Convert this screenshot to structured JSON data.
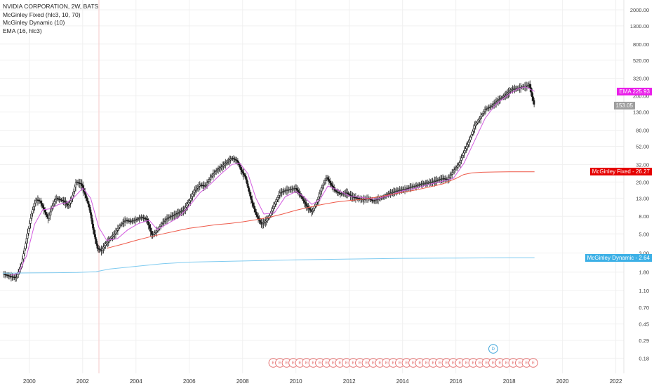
{
  "legend": {
    "title": "NVIDIA CORPORATION, 2W, BATS",
    "ind1": "McGinley Fixed (hlc3, 10, 70)",
    "ind2": "McGinley Dynamic (10)",
    "ind3": "EMA (16, hlc3)"
  },
  "tags": {
    "ema": {
      "label": "EMA",
      "value": "225.93",
      "color": "#e91ee9"
    },
    "last": {
      "value": "153.05",
      "color": "#9e9e9e"
    },
    "fixed": {
      "label": "McGinley Fixed",
      "value": "26.27",
      "color": "#e50000"
    },
    "dynamic": {
      "label": "McGinley Dynamic",
      "value": "2.64",
      "color": "#3cb0e6"
    }
  },
  "events": {
    "earnings_glyph": "E",
    "dividend_glyph": "D"
  },
  "colors": {
    "ema": "#d35be0",
    "fixed": "#ee5a4a",
    "dynamic": "#7fcbf0",
    "candle": "#1a1a1a",
    "grid": "#f0f0f0"
  },
  "chart_data": {
    "type": "line",
    "scale": "log",
    "ylim": [
      0.12,
      2600
    ],
    "xlim": [
      1998.9,
      2022.3
    ],
    "y_ticks": [
      "2000.00",
      "1300.00",
      "800.00",
      "520.00",
      "320.00",
      "200.00",
      "130.00",
      "80.00",
      "52.00",
      "32.00",
      "20.00",
      "13.00",
      "8.00",
      "5.00",
      "3.00",
      "1.80",
      "1.10",
      "0.70",
      "0.45",
      "0.29",
      "0.18"
    ],
    "x_ticks": [
      "2000",
      "2002",
      "2004",
      "2006",
      "2008",
      "2010",
      "2012",
      "2014",
      "2016",
      "2018",
      "2020",
      "2022"
    ],
    "grid": true,
    "price": {
      "name": "NVDA",
      "x": [
        1999.05,
        1999.3,
        1999.5,
        1999.7,
        1999.9,
        2000.1,
        2000.25,
        2000.4,
        2000.55,
        2000.7,
        2000.85,
        2001.0,
        2001.15,
        2001.3,
        2001.45,
        2001.6,
        2001.75,
        2001.95,
        2002.1,
        2002.25,
        2002.4,
        2002.55,
        2002.7,
        2002.85,
        2003.0,
        2003.2,
        2003.4,
        2003.6,
        2003.8,
        2004.0,
        2004.2,
        2004.4,
        2004.6,
        2004.8,
        2005.0,
        2005.2,
        2005.4,
        2005.6,
        2005.8,
        2006.0,
        2006.2,
        2006.4,
        2006.6,
        2006.8,
        2007.0,
        2007.2,
        2007.4,
        2007.6,
        2007.8,
        2007.95,
        2008.1,
        2008.3,
        2008.5,
        2008.7,
        2008.85,
        2009.0,
        2009.2,
        2009.4,
        2009.6,
        2009.8,
        2010.0,
        2010.2,
        2010.4,
        2010.6,
        2010.8,
        2011.0,
        2011.15,
        2011.3,
        2011.5,
        2011.7,
        2011.9,
        2012.1,
        2012.3,
        2012.5,
        2012.7,
        2012.9,
        2013.1,
        2013.3,
        2013.5,
        2013.7,
        2013.9,
        2014.1,
        2014.3,
        2014.5,
        2014.7,
        2014.9,
        2015.1,
        2015.3,
        2015.5,
        2015.7,
        2015.9,
        2016.1,
        2016.3,
        2016.5,
        2016.7,
        2016.9,
        2017.1,
        2017.3,
        2017.5,
        2017.7,
        2017.9,
        2018.1,
        2018.3,
        2018.5,
        2018.65,
        2018.75,
        2018.85,
        2018.95
      ],
      "y": [
        1.7,
        1.6,
        1.55,
        2.2,
        4.5,
        9.0,
        12.5,
        12.0,
        9.5,
        7.5,
        10.5,
        13.0,
        12.5,
        12.0,
        10.5,
        13.0,
        20.0,
        19.0,
        14.0,
        10.0,
        5.5,
        3.4,
        3.2,
        3.8,
        4.3,
        5.0,
        6.3,
        7.2,
        7.0,
        7.3,
        7.8,
        7.4,
        4.8,
        5.5,
        6.8,
        7.7,
        8.2,
        8.8,
        9.5,
        12.0,
        16.0,
        18.5,
        18.0,
        23.0,
        27.0,
        30.0,
        34.0,
        38.0,
        35.0,
        27.0,
        23.0,
        13.0,
        8.5,
        6.5,
        7.0,
        8.0,
        11.0,
        15.0,
        16.0,
        16.5,
        17.0,
        13.5,
        10.5,
        9.0,
        12.0,
        18.0,
        23.0,
        19.0,
        15.5,
        14.5,
        15.0,
        13.5,
        13.0,
        12.5,
        13.0,
        12.0,
        12.8,
        13.5,
        14.8,
        15.5,
        16.2,
        16.5,
        17.5,
        18.0,
        19.0,
        19.5,
        20.0,
        21.0,
        22.0,
        21.5,
        27.0,
        32.0,
        45.0,
        60.0,
        90.0,
        110.0,
        140.0,
        150.0,
        170.0,
        190.0,
        210.0,
        240.0,
        245.0,
        255.0,
        260.0,
        275.0,
        200.0,
        153.05
      ]
    },
    "series": [
      {
        "name": "EMA",
        "last": 225.93,
        "x": [
          1999.3,
          1999.6,
          1999.9,
          2000.2,
          2000.5,
          2000.8,
          2001.1,
          2001.4,
          2001.7,
          2002.0,
          2002.3,
          2002.6,
          2002.9,
          2003.3,
          2003.7,
          2004.1,
          2004.5,
          2004.8,
          2005.2,
          2005.6,
          2006.0,
          2006.4,
          2006.8,
          2007.2,
          2007.6,
          2007.9,
          2008.2,
          2008.5,
          2008.8,
          2009.2,
          2009.6,
          2010.0,
          2010.3,
          2010.6,
          2010.9,
          2011.2,
          2011.6,
          2012.0,
          2012.5,
          2013.0,
          2013.5,
          2014.0,
          2014.5,
          2015.0,
          2015.5,
          2015.9,
          2016.3,
          2016.7,
          2017.1,
          2017.5,
          2017.9,
          2018.3,
          2018.6,
          2018.95
        ],
        "y": [
          1.65,
          1.75,
          2.8,
          6.5,
          9.5,
          9.8,
          11.0,
          11.5,
          13.5,
          17.0,
          13.0,
          6.0,
          4.2,
          4.4,
          5.6,
          6.6,
          7.2,
          5.6,
          6.6,
          7.8,
          10.5,
          15.0,
          19.0,
          25.0,
          32.0,
          33.0,
          25.0,
          13.0,
          8.5,
          8.8,
          13.5,
          15.5,
          13.5,
          11.0,
          12.5,
          18.0,
          16.0,
          13.8,
          13.2,
          12.6,
          14.0,
          15.8,
          17.0,
          18.8,
          20.5,
          22.0,
          33.0,
          60.0,
          110.0,
          160.0,
          200.0,
          240.0,
          255.0,
          225.93
        ]
      },
      {
        "name": "McGinley Fixed",
        "last": 26.27,
        "x": [
          2002.9,
          2003.5,
          2004.0,
          2004.5,
          2005.0,
          2005.5,
          2006.0,
          2006.5,
          2007.0,
          2007.5,
          2008.0,
          2008.5,
          2009.0,
          2009.5,
          2010.0,
          2010.5,
          2011.0,
          2011.5,
          2012.0,
          2012.5,
          2013.0,
          2013.5,
          2014.0,
          2014.5,
          2015.0,
          2015.5,
          2016.0,
          2016.3,
          2016.6,
          2017.0,
          2017.5,
          2018.0,
          2018.5,
          2018.95
        ],
        "y": [
          3.4,
          3.8,
          4.2,
          4.6,
          5.0,
          5.4,
          5.8,
          6.1,
          6.4,
          6.6,
          6.9,
          7.3,
          7.8,
          8.5,
          9.4,
          10.2,
          11.0,
          11.7,
          12.2,
          12.6,
          13.3,
          14.2,
          15.2,
          16.2,
          17.5,
          19.0,
          22.0,
          24.5,
          25.5,
          26.0,
          26.2,
          26.27,
          26.27,
          26.27
        ]
      },
      {
        "name": "McGinley Dynamic",
        "last": 2.64,
        "x": [
          1999.0,
          2000.0,
          2001.0,
          2001.8,
          2002.5,
          2003.0,
          2004.0,
          2005.0,
          2006.0,
          2008.0,
          2010.0,
          2012.0,
          2014.0,
          2016.0,
          2018.0,
          2018.95
        ],
        "y": [
          1.75,
          1.76,
          1.77,
          1.78,
          1.82,
          1.95,
          2.1,
          2.25,
          2.35,
          2.42,
          2.5,
          2.55,
          2.6,
          2.62,
          2.64,
          2.64
        ]
      }
    ]
  }
}
